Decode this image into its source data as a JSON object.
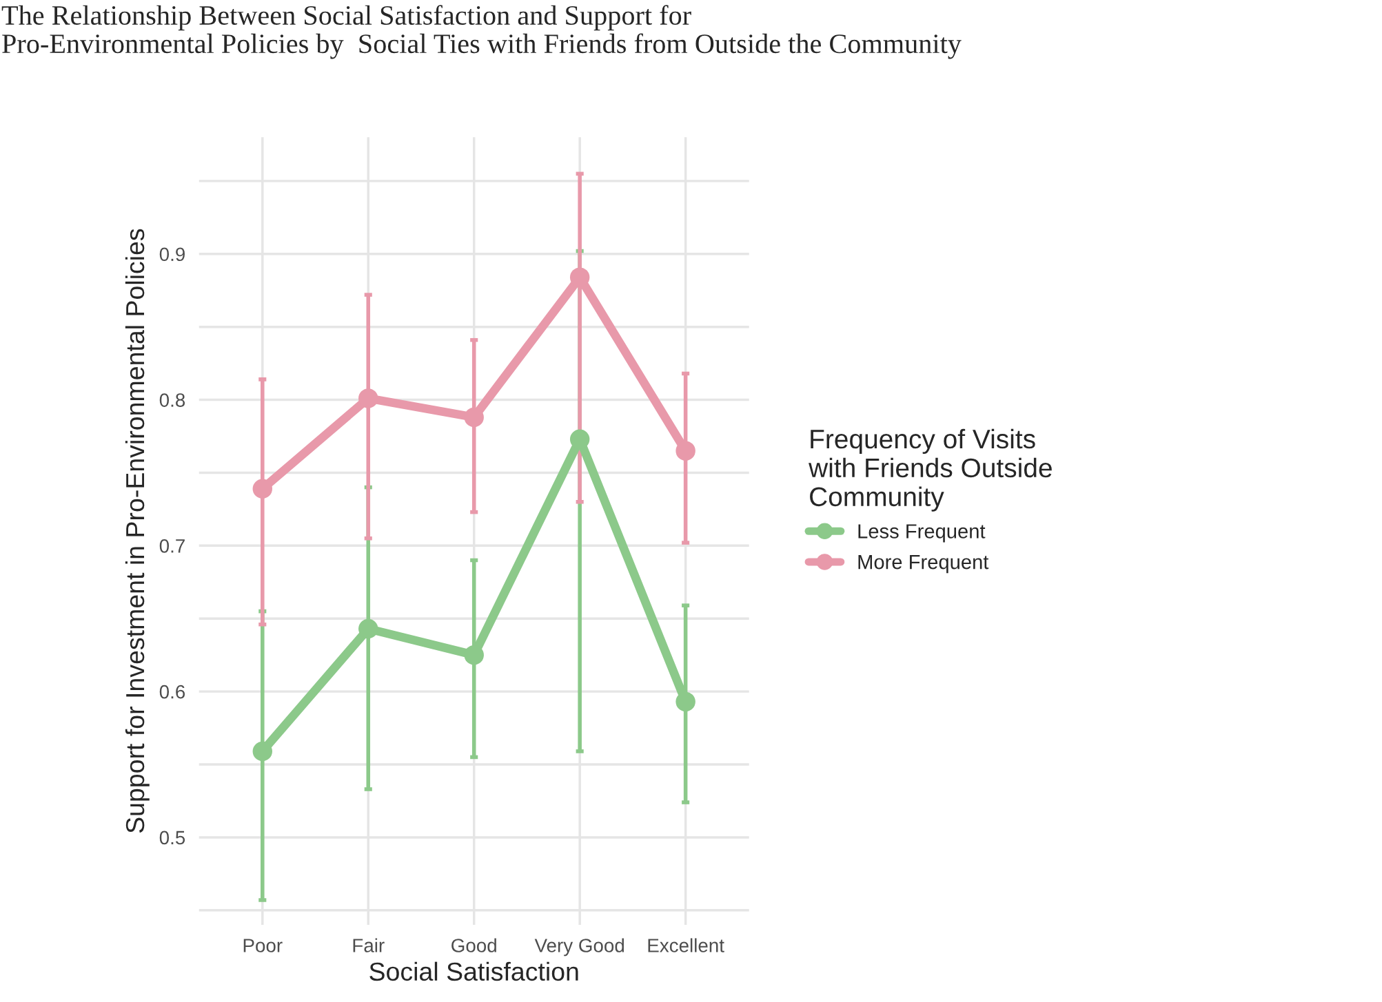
{
  "chart_data": {
    "type": "line",
    "title": "The Relationship Between Social Satisfaction and Support for\nPro-Environmental Policies by  Social Ties with Friends from Outside the Community",
    "xlabel": "Social Satisfaction",
    "ylabel": "Support for Investment in Pro-Environmental Policies",
    "legend_title": "Frequency of Visits\nwith Friends Outside\nCommunity",
    "categories": [
      "Poor",
      "Fair",
      "Good",
      "Very Good",
      "Excellent"
    ],
    "series": [
      {
        "name": "Less Frequent",
        "color": "#8cc98a",
        "values": [
          0.559,
          0.643,
          0.625,
          0.773,
          0.593
        ],
        "errors": [
          [
            0.457,
            0.655
          ],
          [
            0.533,
            0.74
          ],
          [
            0.555,
            0.69
          ],
          [
            0.559,
            0.902
          ],
          [
            0.524,
            0.659
          ]
        ]
      },
      {
        "name": "More Frequent",
        "color": "#e899aa",
        "values": [
          0.739,
          0.801,
          0.788,
          0.884,
          0.765
        ],
        "errors": [
          [
            0.646,
            0.814
          ],
          [
            0.705,
            0.872
          ],
          [
            0.723,
            0.841
          ],
          [
            0.73,
            0.955
          ],
          [
            0.702,
            0.818
          ]
        ]
      }
    ],
    "ylim": [
      0.44,
      0.98
    ],
    "yticks": [
      {
        "value": 0.45,
        "label": null
      },
      0.5,
      {
        "value": 0.55,
        "label": null
      },
      0.6,
      {
        "value": 0.65,
        "label": null
      },
      0.7,
      {
        "value": 0.75,
        "label": null
      },
      0.8,
      {
        "value": 0.85,
        "label": null
      },
      0.9,
      {
        "value": 0.95,
        "label": null
      }
    ],
    "grid": true,
    "legend": "right",
    "marker": "circle",
    "line_style": "solid"
  }
}
